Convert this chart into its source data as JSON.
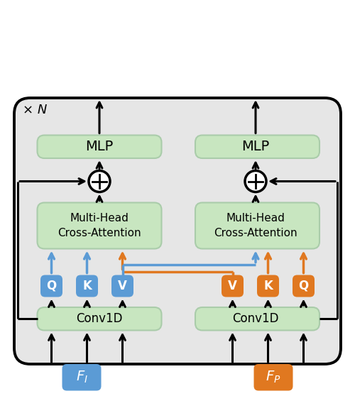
{
  "fig_width": 5.0,
  "fig_height": 5.58,
  "dpi": 100,
  "bg_color": "#e6e6e6",
  "green_box_color": "#c8e6c0",
  "green_box_edge": "#aaccaa",
  "blue_color": "#5b9bd5",
  "orange_color": "#e07820",
  "blue_qkv": [
    "Q",
    "K",
    "V"
  ],
  "orange_qkv": [
    "V",
    "K",
    "Q"
  ],
  "mlp_label": "MLP",
  "conv_label": "Conv1D",
  "attn_label": "Multi-Head\nCross-Attention",
  "fi_label": "$F_I$",
  "fp_label": "$F_P$",
  "times_n_label": "× N"
}
